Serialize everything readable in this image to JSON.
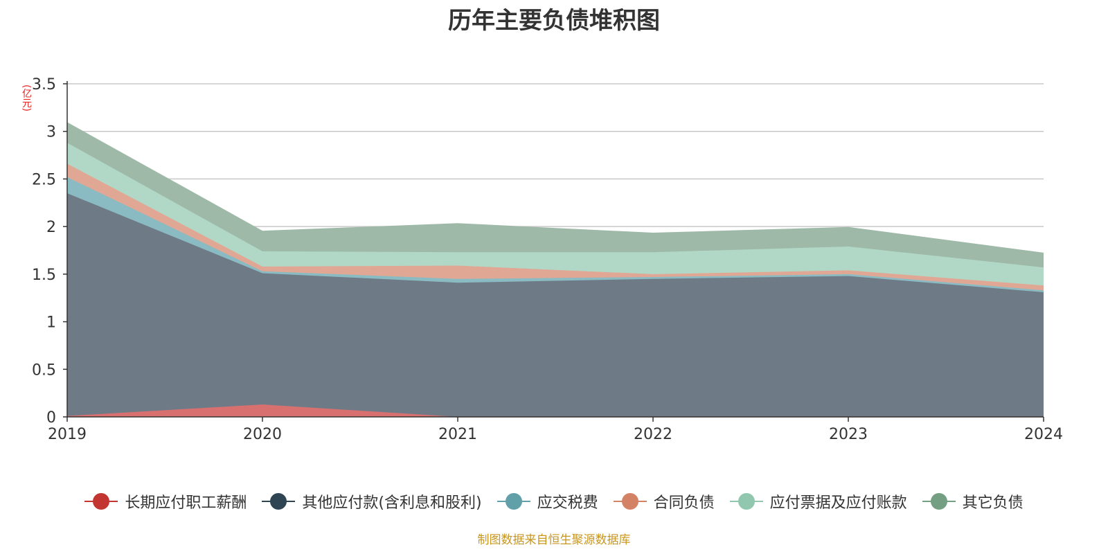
{
  "chart_data": {
    "type": "area",
    "stacked": true,
    "title": "历年主要负债堆积图",
    "unit_label": "(亿元)",
    "x": [
      "2019",
      "2020",
      "2021",
      "2022",
      "2023",
      "2024"
    ],
    "ylim": [
      0,
      3.5
    ],
    "y_ticks": [
      "0",
      "0.5",
      "1",
      "1.5",
      "2",
      "2.5",
      "3",
      "3.5"
    ],
    "grid": true,
    "legend_position": "bottom",
    "series": [
      {
        "name": "长期应付职工薪酬",
        "color": "#c23531",
        "fill": "#d97070",
        "values": [
          0.01,
          0.13,
          0.0,
          0.0,
          0.0,
          0.0
        ]
      },
      {
        "name": "其他应付款(含利息和股利)",
        "color": "#2f4554",
        "fill": "#6e7b87",
        "values": [
          2.34,
          1.38,
          1.41,
          1.45,
          1.48,
          1.31
        ]
      },
      {
        "name": "应交税费",
        "color": "#61a0a8",
        "fill": "#8bbbc2",
        "values": [
          0.17,
          0.02,
          0.04,
          0.02,
          0.02,
          0.02
        ]
      },
      {
        "name": "合同负债",
        "color": "#d48265",
        "fill": "#e0a894",
        "values": [
          0.14,
          0.05,
          0.14,
          0.03,
          0.04,
          0.05
        ]
      },
      {
        "name": "应付票据及应付账款",
        "color": "#91c7ae",
        "fill": "#b1d8c6",
        "values": [
          0.22,
          0.16,
          0.14,
          0.23,
          0.25,
          0.19
        ]
      },
      {
        "name": "其它负债",
        "color": "#749f83",
        "fill": "#9fb9a8",
        "values": [
          0.21,
          0.21,
          0.3,
          0.2,
          0.2,
          0.15
        ]
      }
    ],
    "source_text": "制图数据来自恒生聚源数据库"
  }
}
